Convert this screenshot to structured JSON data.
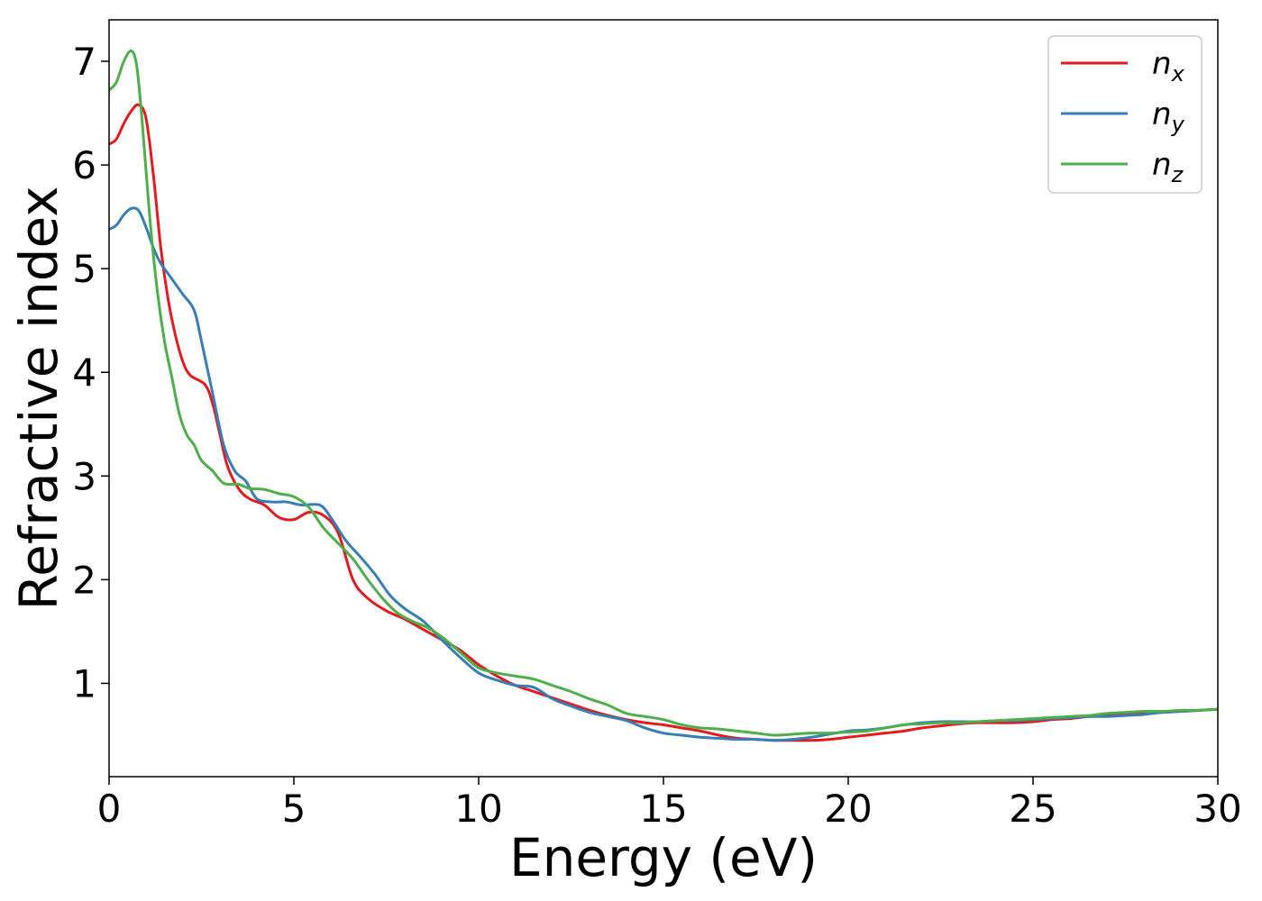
{
  "chart_data": {
    "type": "line",
    "title": "",
    "xlabel": "Energy (eV)",
    "ylabel": "Refractive index",
    "xlim": [
      0,
      30
    ],
    "ylim": [
      0.1,
      7.4
    ],
    "xticks": [
      0,
      5,
      10,
      15,
      20,
      25,
      30
    ],
    "yticks": [
      1,
      2,
      3,
      4,
      5,
      6,
      7
    ],
    "grid": false,
    "legend_position": "top-right",
    "series": [
      {
        "name": "n",
        "subscript": "x",
        "color": "#e41a1c",
        "points": [
          [
            0,
            6.2
          ],
          [
            0.2,
            6.25
          ],
          [
            0.4,
            6.4
          ],
          [
            0.6,
            6.52
          ],
          [
            0.8,
            6.58
          ],
          [
            1.0,
            6.45
          ],
          [
            1.2,
            5.9
          ],
          [
            1.4,
            5.2
          ],
          [
            1.6,
            4.7
          ],
          [
            1.8,
            4.35
          ],
          [
            2.0,
            4.1
          ],
          [
            2.2,
            3.97
          ],
          [
            2.6,
            3.88
          ],
          [
            2.8,
            3.7
          ],
          [
            3.0,
            3.4
          ],
          [
            3.2,
            3.1
          ],
          [
            3.5,
            2.88
          ],
          [
            3.8,
            2.78
          ],
          [
            4.2,
            2.72
          ],
          [
            4.6,
            2.6
          ],
          [
            5.0,
            2.58
          ],
          [
            5.4,
            2.65
          ],
          [
            5.8,
            2.62
          ],
          [
            6.2,
            2.45
          ],
          [
            6.6,
            2.0
          ],
          [
            7.0,
            1.82
          ],
          [
            7.5,
            1.7
          ],
          [
            8.0,
            1.62
          ],
          [
            8.5,
            1.52
          ],
          [
            9.0,
            1.42
          ],
          [
            9.5,
            1.32
          ],
          [
            10.0,
            1.18
          ],
          [
            10.5,
            1.07
          ],
          [
            11.0,
            0.98
          ],
          [
            11.5,
            0.92
          ],
          [
            12.0,
            0.86
          ],
          [
            12.5,
            0.8
          ],
          [
            13.0,
            0.74
          ],
          [
            13.5,
            0.69
          ],
          [
            14.0,
            0.65
          ],
          [
            14.5,
            0.62
          ],
          [
            15.0,
            0.6
          ],
          [
            15.5,
            0.57
          ],
          [
            16.0,
            0.54
          ],
          [
            16.5,
            0.5
          ],
          [
            17.0,
            0.47
          ],
          [
            17.5,
            0.46
          ],
          [
            18.0,
            0.45
          ],
          [
            18.5,
            0.45
          ],
          [
            19.0,
            0.45
          ],
          [
            19.5,
            0.46
          ],
          [
            20.0,
            0.48
          ],
          [
            20.5,
            0.5
          ],
          [
            21.0,
            0.52
          ],
          [
            21.5,
            0.54
          ],
          [
            22.0,
            0.57
          ],
          [
            22.5,
            0.59
          ],
          [
            23.0,
            0.61
          ],
          [
            23.5,
            0.62
          ],
          [
            24.0,
            0.62
          ],
          [
            24.5,
            0.62
          ],
          [
            25.0,
            0.63
          ],
          [
            25.5,
            0.65
          ],
          [
            26.0,
            0.66
          ],
          [
            26.5,
            0.68
          ],
          [
            27.0,
            0.69
          ],
          [
            27.5,
            0.7
          ],
          [
            28.0,
            0.71
          ],
          [
            28.5,
            0.72
          ],
          [
            29.0,
            0.73
          ],
          [
            29.5,
            0.74
          ],
          [
            30.0,
            0.75
          ]
        ]
      },
      {
        "name": "n",
        "subscript": "y",
        "color": "#377eb8",
        "points": [
          [
            0,
            5.38
          ],
          [
            0.2,
            5.42
          ],
          [
            0.4,
            5.52
          ],
          [
            0.6,
            5.58
          ],
          [
            0.8,
            5.56
          ],
          [
            1.0,
            5.4
          ],
          [
            1.2,
            5.2
          ],
          [
            1.4,
            5.05
          ],
          [
            1.6,
            4.95
          ],
          [
            1.8,
            4.85
          ],
          [
            2.0,
            4.75
          ],
          [
            2.3,
            4.6
          ],
          [
            2.5,
            4.3
          ],
          [
            2.8,
            3.8
          ],
          [
            3.1,
            3.3
          ],
          [
            3.4,
            3.05
          ],
          [
            3.7,
            2.95
          ],
          [
            4.0,
            2.78
          ],
          [
            4.4,
            2.75
          ],
          [
            4.8,
            2.75
          ],
          [
            5.2,
            2.72
          ],
          [
            5.7,
            2.72
          ],
          [
            6.0,
            2.6
          ],
          [
            6.4,
            2.38
          ],
          [
            6.8,
            2.22
          ],
          [
            7.2,
            2.05
          ],
          [
            7.6,
            1.85
          ],
          [
            8.0,
            1.72
          ],
          [
            8.5,
            1.6
          ],
          [
            9.0,
            1.42
          ],
          [
            9.5,
            1.25
          ],
          [
            10.0,
            1.1
          ],
          [
            10.5,
            1.03
          ],
          [
            11.0,
            0.98
          ],
          [
            11.5,
            0.96
          ],
          [
            12.0,
            0.85
          ],
          [
            12.5,
            0.78
          ],
          [
            13.0,
            0.72
          ],
          [
            13.5,
            0.68
          ],
          [
            14.0,
            0.64
          ],
          [
            14.5,
            0.57
          ],
          [
            15.0,
            0.52
          ],
          [
            15.5,
            0.5
          ],
          [
            16.0,
            0.48
          ],
          [
            16.5,
            0.47
          ],
          [
            17.0,
            0.46
          ],
          [
            17.5,
            0.46
          ],
          [
            18.0,
            0.45
          ],
          [
            18.5,
            0.46
          ],
          [
            19.0,
            0.48
          ],
          [
            19.5,
            0.51
          ],
          [
            20.0,
            0.54
          ],
          [
            20.5,
            0.55
          ],
          [
            21.0,
            0.57
          ],
          [
            21.5,
            0.6
          ],
          [
            22.0,
            0.62
          ],
          [
            22.5,
            0.63
          ],
          [
            23.0,
            0.63
          ],
          [
            23.5,
            0.63
          ],
          [
            24.0,
            0.64
          ],
          [
            24.5,
            0.64
          ],
          [
            25.0,
            0.65
          ],
          [
            25.5,
            0.66
          ],
          [
            26.0,
            0.67
          ],
          [
            26.5,
            0.68
          ],
          [
            27.0,
            0.68
          ],
          [
            27.5,
            0.69
          ],
          [
            28.0,
            0.7
          ],
          [
            28.5,
            0.72
          ],
          [
            29.0,
            0.73
          ],
          [
            29.5,
            0.74
          ],
          [
            30.0,
            0.75
          ]
        ]
      },
      {
        "name": "n",
        "subscript": "z",
        "color": "#4daf4a",
        "points": [
          [
            0,
            6.72
          ],
          [
            0.2,
            6.8
          ],
          [
            0.4,
            7.0
          ],
          [
            0.6,
            7.1
          ],
          [
            0.75,
            6.95
          ],
          [
            0.9,
            6.4
          ],
          [
            1.1,
            5.5
          ],
          [
            1.3,
            4.8
          ],
          [
            1.5,
            4.3
          ],
          [
            1.7,
            3.95
          ],
          [
            1.9,
            3.6
          ],
          [
            2.1,
            3.4
          ],
          [
            2.3,
            3.3
          ],
          [
            2.5,
            3.15
          ],
          [
            2.8,
            3.05
          ],
          [
            3.1,
            2.93
          ],
          [
            3.5,
            2.92
          ],
          [
            3.8,
            2.88
          ],
          [
            4.2,
            2.87
          ],
          [
            4.6,
            2.83
          ],
          [
            5.0,
            2.8
          ],
          [
            5.4,
            2.7
          ],
          [
            5.8,
            2.5
          ],
          [
            6.2,
            2.35
          ],
          [
            6.6,
            2.2
          ],
          [
            7.0,
            2.0
          ],
          [
            7.4,
            1.82
          ],
          [
            7.8,
            1.68
          ],
          [
            8.2,
            1.6
          ],
          [
            8.6,
            1.54
          ],
          [
            9.0,
            1.45
          ],
          [
            9.5,
            1.3
          ],
          [
            10.0,
            1.15
          ],
          [
            10.5,
            1.1
          ],
          [
            11.0,
            1.07
          ],
          [
            11.5,
            1.04
          ],
          [
            12.0,
            0.98
          ],
          [
            12.5,
            0.92
          ],
          [
            13.0,
            0.85
          ],
          [
            13.5,
            0.79
          ],
          [
            14.0,
            0.71
          ],
          [
            14.5,
            0.68
          ],
          [
            15.0,
            0.65
          ],
          [
            15.5,
            0.6
          ],
          [
            16.0,
            0.57
          ],
          [
            16.5,
            0.56
          ],
          [
            17.0,
            0.54
          ],
          [
            17.5,
            0.52
          ],
          [
            18.0,
            0.5
          ],
          [
            18.5,
            0.51
          ],
          [
            19.0,
            0.52
          ],
          [
            19.5,
            0.52
          ],
          [
            20.0,
            0.53
          ],
          [
            20.5,
            0.54
          ],
          [
            21.0,
            0.57
          ],
          [
            21.5,
            0.6
          ],
          [
            22.0,
            0.61
          ],
          [
            22.5,
            0.62
          ],
          [
            23.0,
            0.62
          ],
          [
            23.5,
            0.63
          ],
          [
            24.0,
            0.64
          ],
          [
            24.5,
            0.65
          ],
          [
            25.0,
            0.66
          ],
          [
            25.5,
            0.67
          ],
          [
            26.0,
            0.68
          ],
          [
            26.5,
            0.69
          ],
          [
            27.0,
            0.71
          ],
          [
            27.5,
            0.72
          ],
          [
            28.0,
            0.73
          ],
          [
            28.5,
            0.73
          ],
          [
            29.0,
            0.74
          ],
          [
            29.5,
            0.74
          ],
          [
            30.0,
            0.75
          ]
        ]
      }
    ]
  }
}
